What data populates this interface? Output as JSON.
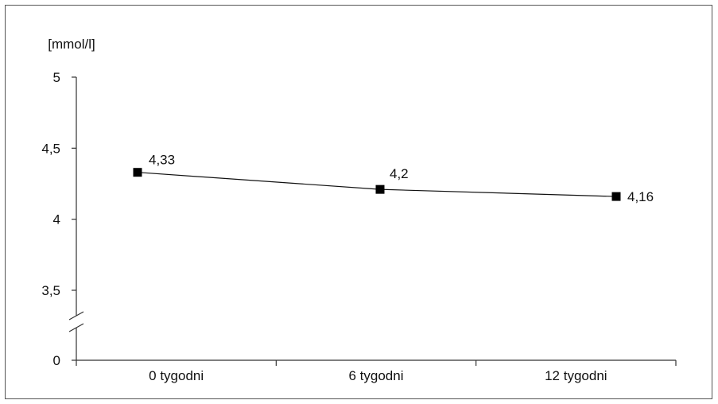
{
  "chart_data": {
    "type": "line",
    "ylabel": "[mmol/l]",
    "categories": [
      "0 tygodni",
      "6 tygodni",
      "12 tygodni"
    ],
    "series": [
      {
        "values": [
          4.33,
          4.21,
          4.16
        ],
        "labels": [
          "4,33",
          "4,2",
          "4,16"
        ]
      }
    ],
    "yticks": [
      {
        "value": 5,
        "label": "5"
      },
      {
        "value": 4.5,
        "label": "4,5"
      },
      {
        "value": 4,
        "label": "4"
      },
      {
        "value": 3.5,
        "label": "3,5"
      },
      {
        "value": 0,
        "label": "0"
      }
    ],
    "ylim": [
      0,
      5
    ],
    "axis_break": true,
    "grid": false,
    "colors": {
      "line": "#111111",
      "marker": "#000000",
      "axis": "#333333"
    }
  }
}
